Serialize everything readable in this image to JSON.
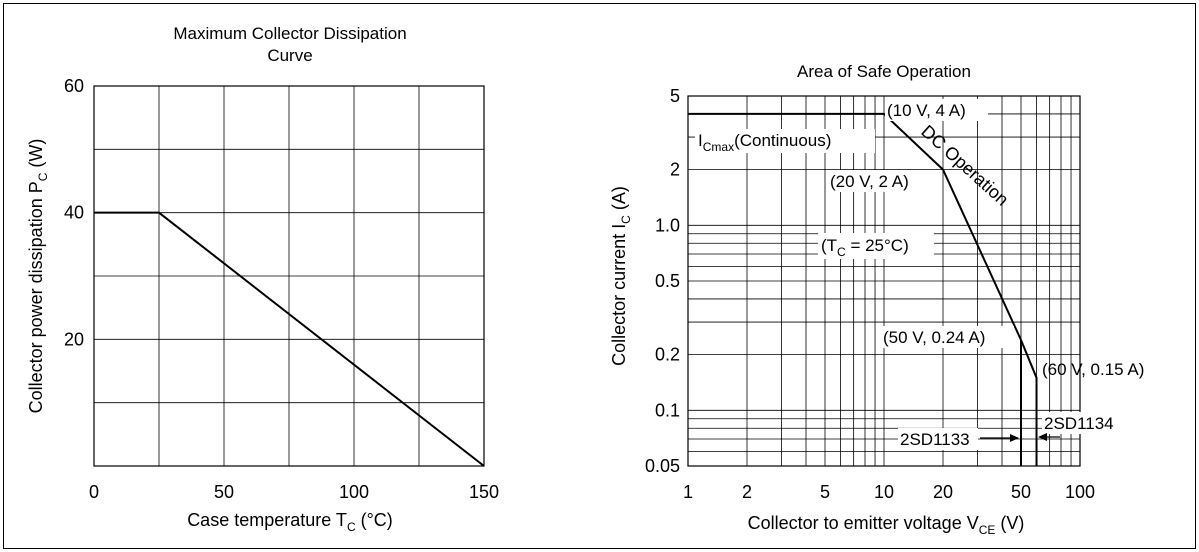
{
  "chart_data": [
    {
      "type": "line",
      "title": "Maximum Collector Dissipation Curve",
      "title_lines": [
        "Maximum Collector Dissipation",
        "Curve"
      ],
      "xlabel": "Case temperature  T",
      "xlabel_sub": "C",
      "xlabel_unit": "  (°C)",
      "ylabel": "Collector power dissipation  P",
      "ylabel_sub": "C",
      "ylabel_unit": "  (W)",
      "xlim": [
        0,
        150
      ],
      "ylim": [
        0,
        60
      ],
      "xticks": [
        "0",
        "50",
        "100",
        "150"
      ],
      "yticks": [
        "20",
        "40",
        "60"
      ],
      "grid": true,
      "series": [
        {
          "x": [
            0,
            25,
            150
          ],
          "y": [
            40,
            40,
            0
          ]
        }
      ]
    },
    {
      "type": "line",
      "scale": "log-log",
      "title": "Area of Safe Operation",
      "xlabel": "Collector to emitter voltage  V",
      "xlabel_sub": "CE",
      "xlabel_unit": "  (V)",
      "ylabel": "Collector current  I",
      "ylabel_sub": "C",
      "ylabel_unit": "  (A)",
      "xlim": [
        1,
        100
      ],
      "ylim": [
        0.05,
        5
      ],
      "xticks": [
        "1",
        "2",
        "5",
        "10",
        "20",
        "50",
        "100"
      ],
      "yticks": [
        "0.05",
        "0.1",
        "0.2",
        "0.5",
        "1.0",
        "2",
        "5"
      ],
      "grid": true,
      "series": [
        {
          "x": [
            1,
            10,
            20,
            50,
            60,
            60
          ],
          "y": [
            4,
            4,
            2,
            0.24,
            0.15,
            0.05
          ]
        }
      ],
      "verticals": [
        {
          "x": 50,
          "y": [
            0.05,
            0.24
          ]
        }
      ],
      "annotations": {
        "point_10v": "(10 V, 4 A)",
        "point_20v": "(20 V, 2 A)",
        "point_50v": "(50 V, 0.24 A)",
        "point_60v": "(60 V, 0.15 A)",
        "icmax_main": "I",
        "icmax_sub": "Cmax",
        "icmax_rest": "(Continuous)",
        "dc_operation": "DC Operation",
        "tc_open": "(T",
        "tc_sub": "C",
        "tc_rest": " = 25°C)",
        "label_2sd1133": "2SD1133",
        "label_2sd1134": "2SD1134"
      }
    }
  ]
}
